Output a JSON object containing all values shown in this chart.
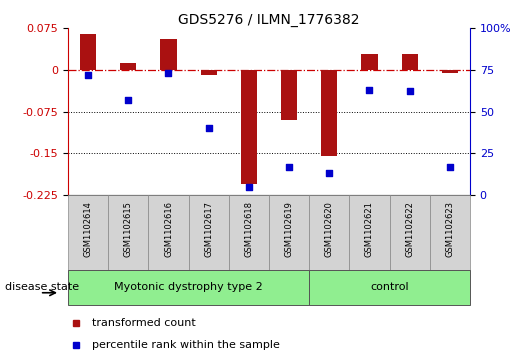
{
  "title": "GDS5276 / ILMN_1776382",
  "samples": [
    "GSM1102614",
    "GSM1102615",
    "GSM1102616",
    "GSM1102617",
    "GSM1102618",
    "GSM1102619",
    "GSM1102620",
    "GSM1102621",
    "GSM1102622",
    "GSM1102623"
  ],
  "bar_values": [
    0.065,
    0.012,
    0.055,
    -0.01,
    -0.205,
    -0.09,
    -0.155,
    0.028,
    0.028,
    -0.005
  ],
  "percentile_values": [
    72,
    57,
    73,
    40,
    5,
    17,
    13,
    63,
    62,
    17
  ],
  "groups": [
    {
      "label": "Myotonic dystrophy type 2",
      "start": 0,
      "end": 6,
      "color": "#90ee90"
    },
    {
      "label": "control",
      "start": 6,
      "end": 10,
      "color": "#90ee90"
    }
  ],
  "left_ylim": [
    -0.225,
    0.075
  ],
  "left_yticks": [
    -0.225,
    -0.15,
    -0.075,
    0,
    0.075
  ],
  "right_ylim": [
    0,
    100
  ],
  "right_yticks": [
    0,
    25,
    50,
    75,
    100
  ],
  "right_yticklabels": [
    "0",
    "25",
    "50",
    "75",
    "100%"
  ],
  "bar_color": "#aa1111",
  "dot_color": "#0000cc",
  "hline_color": "#cc0000",
  "grid_color": "#000000",
  "legend_items": [
    {
      "label": "transformed count",
      "color": "#aa1111"
    },
    {
      "label": "percentile rank within the sample",
      "color": "#0000cc"
    }
  ],
  "disease_state_label": "disease state",
  "label_box_color": "#d3d3d3",
  "group_box_color": "#90ee90",
  "figsize": [
    5.15,
    3.63
  ],
  "dpi": 100
}
